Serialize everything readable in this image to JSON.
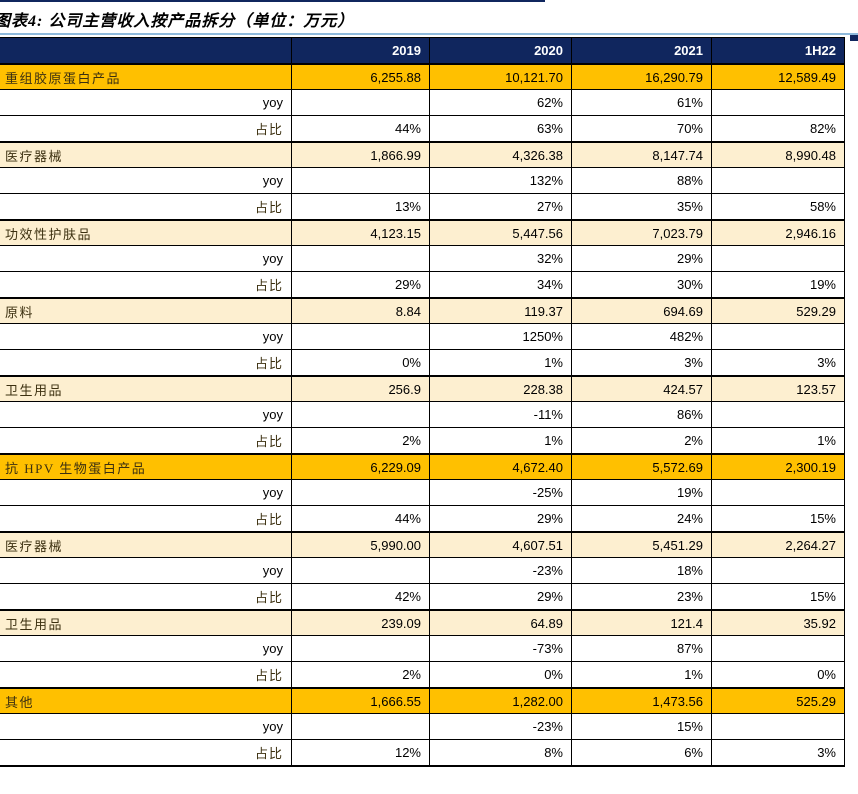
{
  "page": {
    "title": "图表4: 公司主营收入按产品拆分（单位：万元）"
  },
  "colors": {
    "header_bg": "#10265E",
    "orange_row": "#FFC000",
    "cream_row": "#FDEFD0",
    "title_rule_blue": "#8FBADC",
    "border": "#000000"
  },
  "table": {
    "columns": [
      "",
      "2019",
      "2020",
      "2021",
      "1H22"
    ],
    "rows": [
      {
        "label": "重组胶原蛋白产品",
        "style": "orange",
        "values": [
          "6,255.88",
          "10,121.70",
          "16,290.79",
          "12,589.49"
        ]
      },
      {
        "label": "yoy",
        "style": "yoy",
        "values": [
          "",
          "62%",
          "61%",
          ""
        ]
      },
      {
        "label": "占比",
        "style": "share",
        "values": [
          "44%",
          "63%",
          "70%",
          "82%"
        ]
      },
      {
        "label": "医疗器械",
        "style": "cream",
        "values": [
          "1,866.99",
          "4,326.38",
          "8,147.74",
          "8,990.48"
        ]
      },
      {
        "label": "yoy",
        "style": "yoy",
        "values": [
          "",
          "132%",
          "88%",
          ""
        ]
      },
      {
        "label": "占比",
        "style": "share",
        "values": [
          "13%",
          "27%",
          "35%",
          "58%"
        ]
      },
      {
        "label": "功效性护肤品",
        "style": "cream",
        "values": [
          "4,123.15",
          "5,447.56",
          "7,023.79",
          "2,946.16"
        ]
      },
      {
        "label": "yoy",
        "style": "yoy",
        "values": [
          "",
          "32%",
          "29%",
          ""
        ]
      },
      {
        "label": "占比",
        "style": "share",
        "values": [
          "29%",
          "34%",
          "30%",
          "19%"
        ]
      },
      {
        "label": "原料",
        "style": "cream",
        "values": [
          "8.84",
          "119.37",
          "694.69",
          "529.29"
        ]
      },
      {
        "label": "yoy",
        "style": "yoy",
        "values": [
          "",
          "1250%",
          "482%",
          ""
        ]
      },
      {
        "label": "占比",
        "style": "share",
        "values": [
          "0%",
          "1%",
          "3%",
          "3%"
        ]
      },
      {
        "label": "卫生用品",
        "style": "cream",
        "values": [
          "256.9",
          "228.38",
          "424.57",
          "123.57"
        ]
      },
      {
        "label": "yoy",
        "style": "yoy",
        "values": [
          "",
          "-11%",
          "86%",
          ""
        ]
      },
      {
        "label": "占比",
        "style": "share",
        "values": [
          "2%",
          "1%",
          "2%",
          "1%"
        ]
      },
      {
        "label": "抗 HPV 生物蛋白产品",
        "style": "orange",
        "values": [
          "6,229.09",
          "4,672.40",
          "5,572.69",
          "2,300.19"
        ]
      },
      {
        "label": "yoy",
        "style": "yoy",
        "values": [
          "",
          "-25%",
          "19%",
          ""
        ]
      },
      {
        "label": "占比",
        "style": "share",
        "values": [
          "44%",
          "29%",
          "24%",
          "15%"
        ]
      },
      {
        "label": "医疗器械",
        "style": "cream",
        "values": [
          "5,990.00",
          "4,607.51",
          "5,451.29",
          "2,264.27"
        ]
      },
      {
        "label": "yoy",
        "style": "yoy",
        "values": [
          "",
          "-23%",
          "18%",
          ""
        ]
      },
      {
        "label": "占比",
        "style": "share",
        "values": [
          "42%",
          "29%",
          "23%",
          "15%"
        ]
      },
      {
        "label": "卫生用品",
        "style": "cream",
        "values": [
          "239.09",
          "64.89",
          "121.4",
          "35.92"
        ]
      },
      {
        "label": "yoy",
        "style": "yoy",
        "values": [
          "",
          "-73%",
          "87%",
          ""
        ]
      },
      {
        "label": "占比",
        "style": "share",
        "values": [
          "2%",
          "0%",
          "1%",
          "0%"
        ]
      },
      {
        "label": "其他",
        "style": "orange",
        "values": [
          "1,666.55",
          "1,282.00",
          "1,473.56",
          "525.29"
        ]
      },
      {
        "label": "yoy",
        "style": "yoy",
        "values": [
          "",
          "-23%",
          "15%",
          ""
        ]
      },
      {
        "label": "占比",
        "style": "share",
        "values": [
          "12%",
          "8%",
          "6%",
          "3%"
        ]
      }
    ]
  }
}
